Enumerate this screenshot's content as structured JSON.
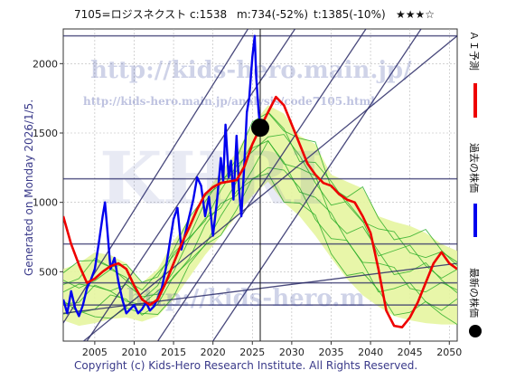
{
  "header": {
    "title": "7105=ロジスネクスト",
    "current": "c:1538",
    "min": "m:734(-52%)",
    "target": "t:1385(-10%)",
    "stars": "★★★☆"
  },
  "watermark": {
    "main": "http://kids-hero.main.jp/",
    "sub": "http://kids-hero.main.jp/analysis/code7105.html",
    "big": "KHRI",
    "lower": "http://kids-hero.m"
  },
  "generated": "Generated on Monday 2026/1/5.",
  "copyright": "Copyright (c) Kids-Hero Research Institute. All Rights Reserved.",
  "legend": {
    "ai": "ＡＩ予測",
    "past": "過去の株価",
    "latest": "最新の株価"
  },
  "colors": {
    "ai_forecast": "#ee0000",
    "past_price": "#0000ee",
    "latest_marker": "#000000",
    "simulations": "#22aa22",
    "band_fill": "#e6f5a0",
    "trend_lines": "#2a2a66",
    "grid": "#b8b8b8",
    "frame_bg": "#ffffff"
  },
  "chart_data": {
    "type": "line",
    "xlim": [
      2001,
      2051
    ],
    "ylim": [
      0,
      2250
    ],
    "x_ticks": [
      2005,
      2010,
      2015,
      2020,
      2025,
      2030,
      2035,
      2040,
      2045,
      2050
    ],
    "y_ticks": [
      500,
      1000,
      1500,
      2000
    ],
    "horizontal_levels": [
      2200,
      1170,
      700,
      420,
      260
    ],
    "latest_point": {
      "x": 2026.0,
      "y": 1538
    },
    "current_year_marker": 2026.0,
    "trend_lines": [
      [
        [
          2001,
          130
        ],
        [
          2025,
          2300
        ]
      ],
      [
        [
          2004,
          0
        ],
        [
          2031,
          2300
        ]
      ],
      [
        [
          2013,
          0
        ],
        [
          2040,
          2300
        ]
      ],
      [
        [
          2020,
          0
        ],
        [
          2047,
          2300
        ]
      ],
      [
        [
          2001,
          -120
        ],
        [
          2051,
          2200
        ]
      ],
      [
        [
          2001,
          200
        ],
        [
          2051,
          560
        ]
      ]
    ],
    "band_upper": [
      [
        2001,
        520
      ],
      [
        2003,
        560
      ],
      [
        2005,
        640
      ],
      [
        2007,
        620
      ],
      [
        2009,
        560
      ],
      [
        2011,
        420
      ],
      [
        2013,
        520
      ],
      [
        2015,
        720
      ],
      [
        2017,
        880
      ],
      [
        2019,
        1060
      ],
      [
        2021,
        1220
      ],
      [
        2023,
        1360
      ],
      [
        2025,
        1560
      ],
      [
        2027,
        1700
      ],
      [
        2029,
        1640
      ],
      [
        2031,
        1480
      ],
      [
        2033,
        1420
      ],
      [
        2035,
        1200
      ],
      [
        2037,
        1150
      ],
      [
        2039,
        1100
      ],
      [
        2041,
        900
      ],
      [
        2043,
        860
      ],
      [
        2045,
        830
      ],
      [
        2047,
        780
      ],
      [
        2049,
        700
      ],
      [
        2051,
        650
      ]
    ],
    "band_lower": [
      [
        2001,
        150
      ],
      [
        2003,
        110
      ],
      [
        2005,
        130
      ],
      [
        2007,
        160
      ],
      [
        2009,
        170
      ],
      [
        2011,
        140
      ],
      [
        2013,
        180
      ],
      [
        2015,
        300
      ],
      [
        2017,
        460
      ],
      [
        2019,
        620
      ],
      [
        2021,
        760
      ],
      [
        2023,
        900
      ],
      [
        2025,
        1050
      ],
      [
        2027,
        1150
      ],
      [
        2029,
        1000
      ],
      [
        2031,
        900
      ],
      [
        2033,
        760
      ],
      [
        2035,
        600
      ],
      [
        2037,
        450
      ],
      [
        2039,
        330
      ],
      [
        2041,
        250
      ],
      [
        2043,
        180
      ],
      [
        2045,
        150
      ],
      [
        2047,
        130
      ],
      [
        2049,
        120
      ],
      [
        2051,
        120
      ]
    ],
    "series": [
      {
        "key": "past",
        "values": [
          [
            2001,
            300
          ],
          [
            2001.5,
            200
          ],
          [
            2002,
            360
          ],
          [
            2002.5,
            240
          ],
          [
            2003,
            180
          ],
          [
            2003.5,
            260
          ],
          [
            2004,
            380
          ],
          [
            2004.5,
            440
          ],
          [
            2005,
            520
          ],
          [
            2005.5,
            700
          ],
          [
            2006,
            900
          ],
          [
            2006.3,
            1000
          ],
          [
            2006.6,
            800
          ],
          [
            2007,
            520
          ],
          [
            2007.5,
            600
          ],
          [
            2008,
            430
          ],
          [
            2008.5,
            300
          ],
          [
            2009,
            200
          ],
          [
            2009.5,
            230
          ],
          [
            2010,
            260
          ],
          [
            2010.5,
            200
          ],
          [
            2011,
            230
          ],
          [
            2011.5,
            280
          ],
          [
            2012,
            220
          ],
          [
            2012.5,
            250
          ],
          [
            2013,
            310
          ],
          [
            2013.5,
            380
          ],
          [
            2014,
            520
          ],
          [
            2014.5,
            700
          ],
          [
            2015,
            880
          ],
          [
            2015.5,
            960
          ],
          [
            2016,
            660
          ],
          [
            2016.5,
            780
          ],
          [
            2017,
            900
          ],
          [
            2017.5,
            1020
          ],
          [
            2018,
            1180
          ],
          [
            2018.5,
            1120
          ],
          [
            2019,
            900
          ],
          [
            2019.5,
            1040
          ],
          [
            2020,
            760
          ],
          [
            2020.5,
            1000
          ],
          [
            2021,
            1320
          ],
          [
            2021.3,
            1150
          ],
          [
            2021.6,
            1560
          ],
          [
            2022,
            1180
          ],
          [
            2022.3,
            1300
          ],
          [
            2022.6,
            1020
          ],
          [
            2023,
            1480
          ],
          [
            2023.3,
            1100
          ],
          [
            2023.6,
            900
          ],
          [
            2024,
            1300
          ],
          [
            2024.3,
            1650
          ],
          [
            2024.6,
            1750
          ],
          [
            2025,
            2050
          ],
          [
            2025.3,
            2200
          ],
          [
            2025.5,
            1900
          ],
          [
            2025.8,
            1650
          ],
          [
            2026.0,
            1538
          ]
        ]
      },
      {
        "key": "ai",
        "values": [
          [
            2001,
            900
          ],
          [
            2002,
            700
          ],
          [
            2003,
            550
          ],
          [
            2004,
            420
          ],
          [
            2005,
            450
          ],
          [
            2006,
            500
          ],
          [
            2007,
            540
          ],
          [
            2008,
            560
          ],
          [
            2009,
            520
          ],
          [
            2010,
            400
          ],
          [
            2011,
            300
          ],
          [
            2012,
            260
          ],
          [
            2013,
            300
          ],
          [
            2014,
            420
          ],
          [
            2015,
            560
          ],
          [
            2016,
            700
          ],
          [
            2017,
            820
          ],
          [
            2018,
            950
          ],
          [
            2019,
            1060
          ],
          [
            2020,
            1110
          ],
          [
            2021,
            1140
          ],
          [
            2022,
            1150
          ],
          [
            2023,
            1160
          ],
          [
            2024,
            1260
          ],
          [
            2025,
            1420
          ],
          [
            2026,
            1538
          ],
          [
            2027,
            1650
          ],
          [
            2028,
            1760
          ],
          [
            2029,
            1700
          ],
          [
            2030,
            1560
          ],
          [
            2031,
            1420
          ],
          [
            2032,
            1280
          ],
          [
            2033,
            1200
          ],
          [
            2034,
            1140
          ],
          [
            2035,
            1120
          ],
          [
            2036,
            1060
          ],
          [
            2037,
            1020
          ],
          [
            2038,
            1000
          ],
          [
            2039,
            900
          ],
          [
            2040,
            780
          ],
          [
            2041,
            520
          ],
          [
            2042,
            220
          ],
          [
            2043,
            110
          ],
          [
            2044,
            100
          ],
          [
            2045,
            170
          ],
          [
            2046,
            280
          ],
          [
            2047,
            420
          ],
          [
            2048,
            560
          ],
          [
            2049,
            640
          ],
          [
            2050,
            560
          ],
          [
            2051,
            520
          ]
        ]
      }
    ]
  }
}
